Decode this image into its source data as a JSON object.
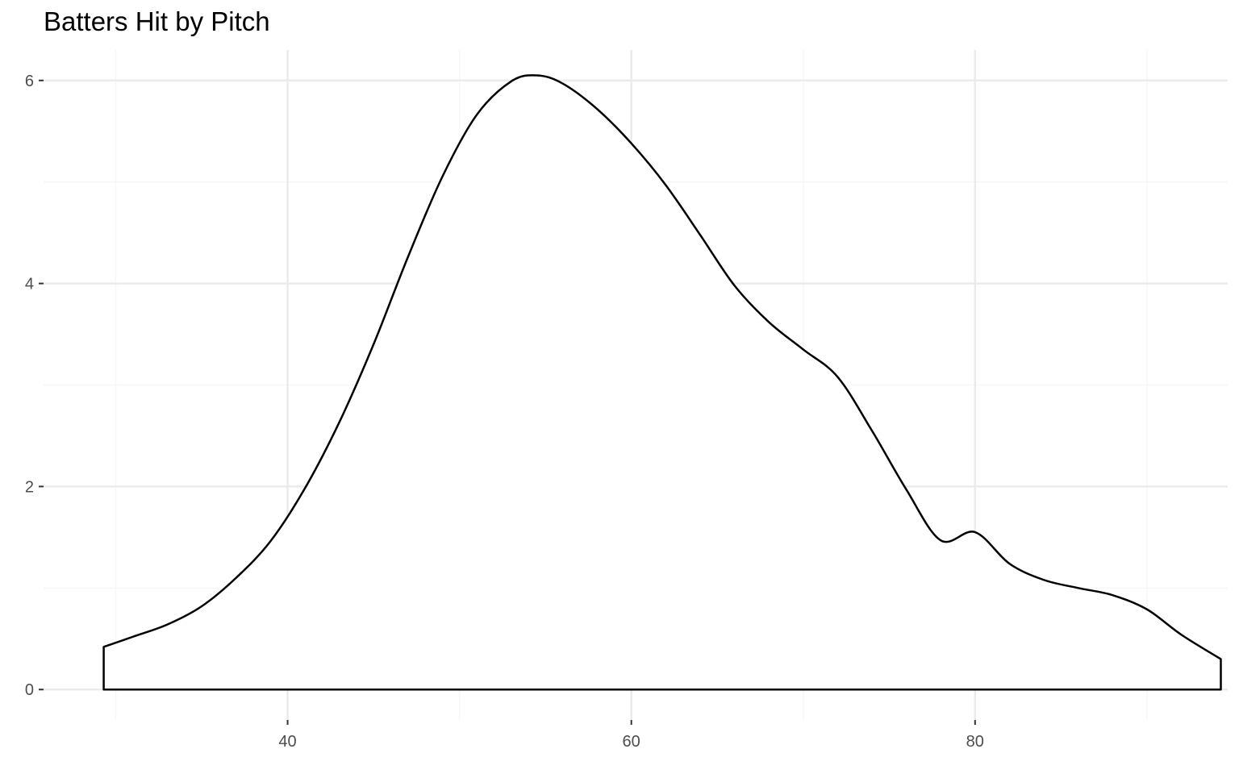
{
  "chart_data": {
    "type": "area",
    "title": "Batters Hit by Pitch",
    "xlabel": "",
    "ylabel": "",
    "xlim": [
      25.8,
      94.7
    ],
    "ylim": [
      -0.3,
      6.3
    ],
    "x_ticks": [
      40,
      60,
      80
    ],
    "y_ticks": [
      0,
      2,
      4,
      6
    ],
    "grid": true,
    "legend": "none",
    "series": [
      {
        "x": [
          29.3,
          31,
          33,
          35,
          37,
          39,
          41,
          43,
          45,
          47,
          49,
          51,
          53,
          54.5,
          56,
          58,
          60,
          62,
          64,
          66,
          68,
          70,
          72,
          74,
          76,
          78,
          80,
          82,
          84,
          86,
          88,
          90,
          92,
          94.3
        ],
        "values": [
          0.42,
          0.52,
          0.64,
          0.82,
          1.1,
          1.46,
          1.98,
          2.63,
          3.4,
          4.26,
          5.05,
          5.66,
          5.99,
          6.05,
          5.97,
          5.72,
          5.38,
          4.97,
          4.48,
          3.98,
          3.62,
          3.35,
          3.08,
          2.55,
          1.97,
          1.47,
          1.55,
          1.24,
          1.08,
          1.0,
          0.93,
          0.79,
          0.54,
          0.3
        ]
      }
    ],
    "colors": {
      "line": "#000000",
      "fill": "#ffffff",
      "grid": "#ebebeb",
      "tick_text": "#4d4d4d",
      "tick_mark": "#333333"
    }
  }
}
